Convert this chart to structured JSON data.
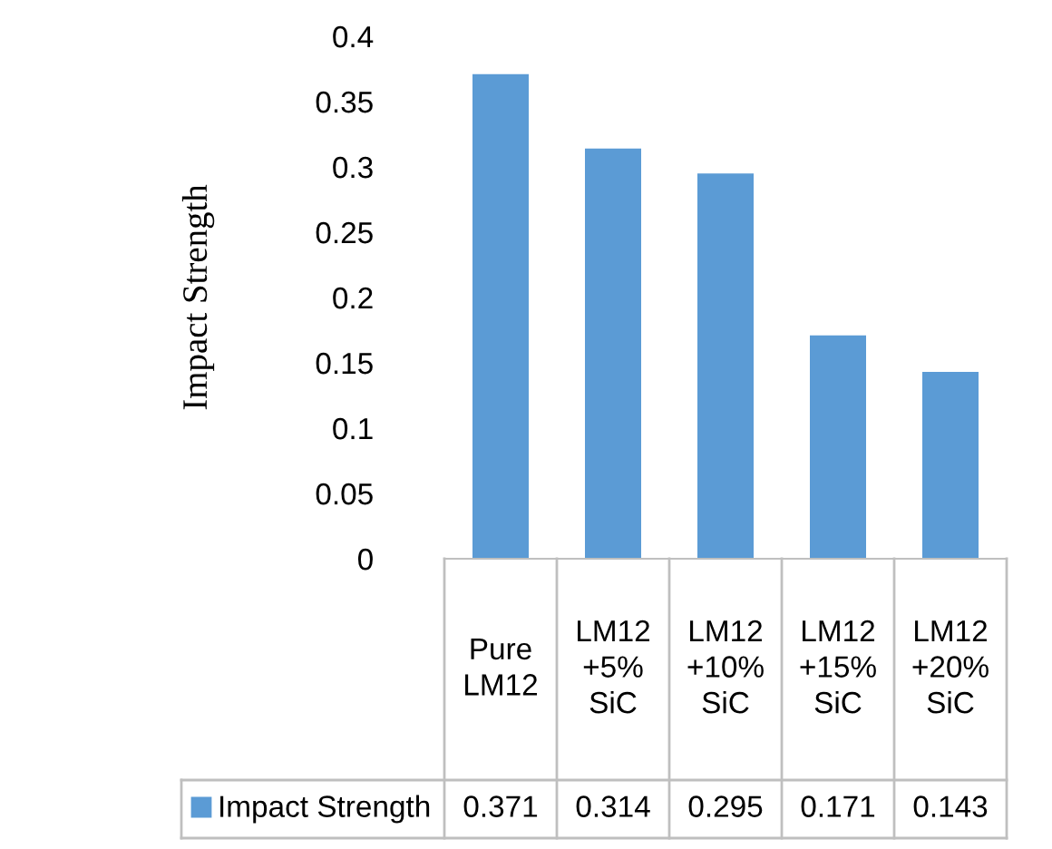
{
  "chart_data": {
    "type": "bar",
    "ylabel": "Impact Strength",
    "categories": [
      "Pure LM12",
      "LM12+5% SiC",
      "LM12+10% SiC",
      "LM12+15% SiC",
      "LM12+20% SiC"
    ],
    "series": [
      {
        "name": "Impact Strength",
        "color": "#5b9bd5",
        "values": [
          0.371,
          0.314,
          0.295,
          0.171,
          0.143
        ]
      }
    ],
    "ylim": [
      0,
      0.4
    ],
    "yticks": [
      0,
      {
        "value": 0.05,
        "label": "0.05"
      },
      {
        "value": 0.1,
        "label": "0.1"
      },
      {
        "value": 0.15,
        "label": "0.15"
      },
      {
        "value": 0.2,
        "label": "0.2"
      },
      {
        "value": 0.25,
        "label": "0.25"
      },
      {
        "value": 0.3,
        "label": "0.3"
      },
      {
        "value": 0.35,
        "label": "0.35"
      },
      {
        "value": 0.4,
        "label": "0.4"
      }
    ],
    "grid": false,
    "legend": "bottom",
    "data_labels": true
  }
}
